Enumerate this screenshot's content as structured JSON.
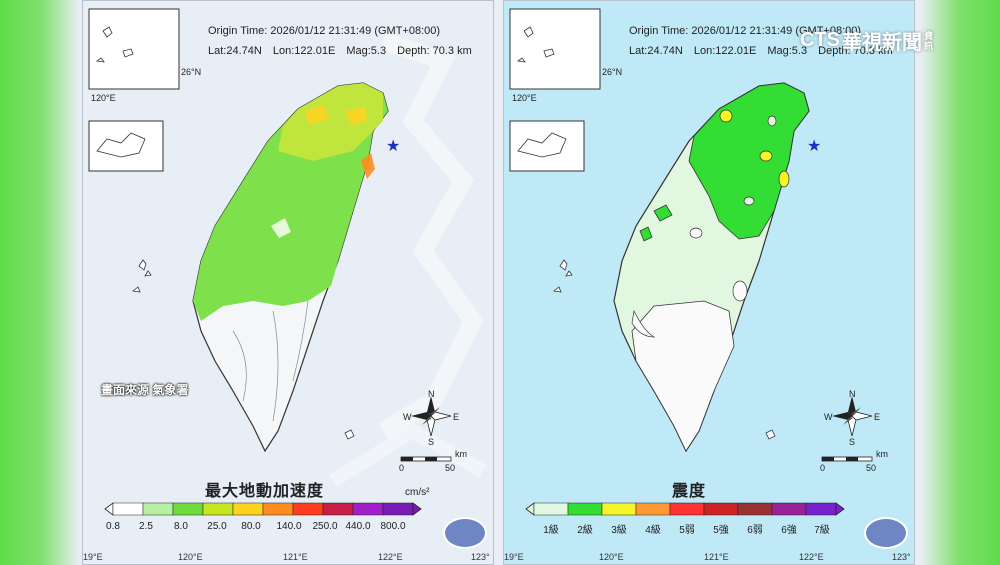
{
  "origin": {
    "time": "Origin Time: 2026/01/12  21:31:49  (GMT+08:00)",
    "lat": "Lat:24.74N",
    "lon": "Lon:122.01E",
    "mag": "Mag:5.3",
    "depth": "Depth: 70.3 km"
  },
  "inset": {
    "lat_label": "26°N",
    "lon_label": "120°E"
  },
  "bottom_axis": [
    "19°E",
    "120°E",
    "121°E",
    "122°E",
    "123°"
  ],
  "compass": {
    "n": "N",
    "s": "S",
    "e": "E",
    "w": "W"
  },
  "scale": {
    "zero": "0",
    "fifty": "50",
    "unit": "km"
  },
  "source_note": "畫面來源 氣象署",
  "pga_legend": {
    "title": "最大地動加速度",
    "unit": "cm/s²",
    "ticks": [
      "0.8",
      "2.5",
      "8.0",
      "25.0",
      "80.0",
      "140.0",
      "250.0",
      "440.0",
      "800.0"
    ],
    "colors": [
      "#ffffff",
      "#b7f0a0",
      "#6fdc3c",
      "#c8e61e",
      "#ffd21e",
      "#ff8c1e",
      "#ff3c1e",
      "#c81e46",
      "#a01ecc",
      "#7a1ab4"
    ]
  },
  "intensity_legend": {
    "title": "震度",
    "levels": [
      "1級",
      "2級",
      "3級",
      "4級",
      "5弱",
      "5強",
      "6弱",
      "6強",
      "7級"
    ],
    "colors": [
      "#e2f7e0",
      "#33dd33",
      "#f5f52a",
      "#ff9933",
      "#ff3333",
      "#cc2222",
      "#993333",
      "#992299",
      "#7722cc"
    ]
  },
  "watermark": {
    "brand": "CTS",
    "name": "華視新聞",
    "small": "資訊"
  }
}
